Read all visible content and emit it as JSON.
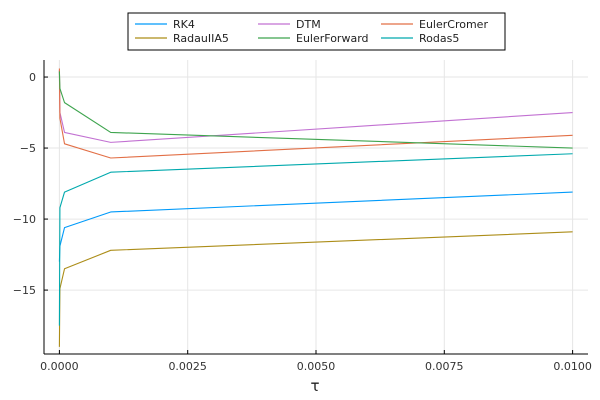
{
  "chart_data": {
    "type": "line",
    "xlabel": "τ",
    "ylabel": "",
    "xlim": [
      -0.0003,
      0.0103
    ],
    "ylim": [
      -19.5,
      1.2
    ],
    "xticks": [
      0.0,
      0.0025,
      0.005,
      0.0075,
      0.01
    ],
    "xtick_labels": [
      "0.0000",
      "0.0025",
      "0.0050",
      "0.0075",
      "0.0100"
    ],
    "yticks": [
      0,
      -5,
      -10,
      -15
    ],
    "ytick_labels": [
      "0",
      "−5",
      "−10",
      "−15"
    ],
    "grid": true,
    "legend_position": "top-center outside",
    "series": [
      {
        "name": "RK4",
        "color": "#009AFA",
        "x": [
          0.0,
          1e-05,
          0.0001,
          0.001,
          0.01
        ],
        "y": [
          -13.0,
          -11.9,
          -10.6,
          -9.5,
          -8.1
        ]
      },
      {
        "name": "DTM",
        "color": "#C271D2",
        "x": [
          0.0,
          1e-05,
          0.0001,
          0.001,
          0.01
        ],
        "y": [
          0.5,
          -2.5,
          -3.9,
          -4.6,
          -2.5
        ]
      },
      {
        "name": "EulerCromer",
        "color": "#E26F46",
        "x": [
          0.0,
          1e-05,
          0.0001,
          0.001,
          0.01
        ],
        "y": [
          0.6,
          -2.9,
          -4.7,
          -5.7,
          -4.1
        ]
      },
      {
        "name": "RadauIIA5",
        "color": "#AC8D18",
        "x": [
          0.0,
          1e-05,
          0.0001,
          0.001,
          0.01
        ],
        "y": [
          -19.0,
          -14.9,
          -13.5,
          -12.2,
          -10.9
        ]
      },
      {
        "name": "EulerForward",
        "color": "#3EA44E",
        "x": [
          0.0,
          1e-05,
          0.0001,
          0.001,
          0.01
        ],
        "y": [
          0.4,
          -0.8,
          -1.8,
          -3.9,
          -5.0
        ]
      },
      {
        "name": "Rodas5",
        "color": "#00A9AD",
        "x": [
          0.0,
          1e-05,
          0.0001,
          0.001,
          0.01
        ],
        "y": [
          -17.5,
          -9.2,
          -8.1,
          -6.7,
          -5.4
        ]
      }
    ]
  }
}
